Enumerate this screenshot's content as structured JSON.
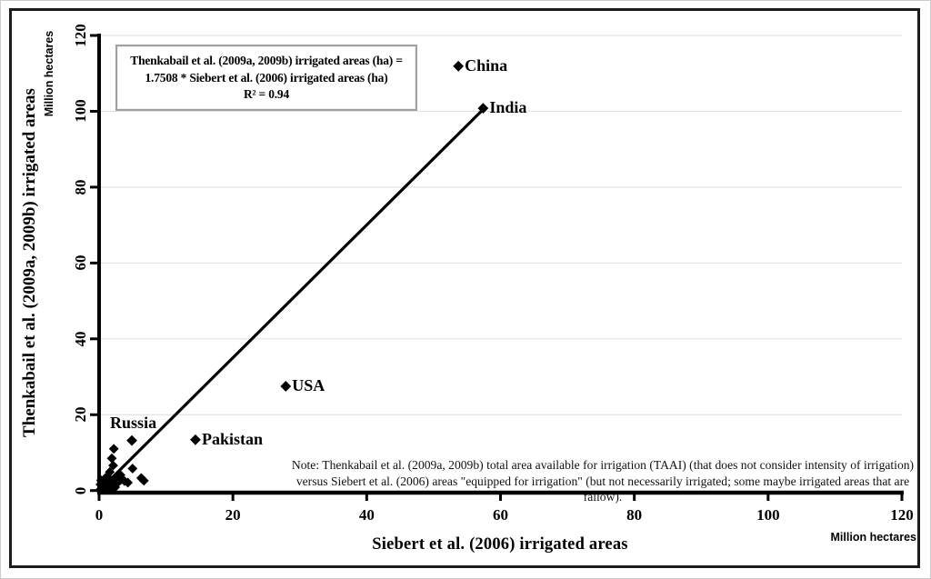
{
  "figure": {
    "frame_color": "#1c1c1c",
    "background": "#ffffff"
  },
  "chart_data": {
    "type": "scatter",
    "xlabel": "Siebert et al. (2006)  irrigated areas",
    "ylabel": "Thenkabail et al. (2009a, 2009b) irrigated areas",
    "x_unit": "Million hectares",
    "y_unit": "Million hectares",
    "xlim": [
      0,
      120
    ],
    "ylim": [
      0,
      120
    ],
    "x_ticks": [
      0,
      20,
      40,
      60,
      80,
      100,
      120
    ],
    "y_ticks": [
      0,
      20,
      40,
      60,
      80,
      100,
      120
    ],
    "grid": "horizontal-only",
    "gridline_color": "#e3e3e3",
    "axis_color": "#000000",
    "marker": "diamond",
    "marker_color": "#000000",
    "labeled_points": [
      {
        "name": "China",
        "x": 53.7,
        "y": 111.9,
        "label_side": "right"
      },
      {
        "name": "India",
        "x": 57.4,
        "y": 100.8,
        "label_side": "right"
      },
      {
        "name": "USA",
        "x": 27.9,
        "y": 27.5,
        "label_side": "right"
      },
      {
        "name": "Pakistan",
        "x": 14.4,
        "y": 13.4,
        "label_side": "right"
      },
      {
        "name": "Russia",
        "x": 4.9,
        "y": 13.2,
        "label_side": "above-left"
      }
    ],
    "cluster_points": [
      [
        2.2,
        11.0
      ],
      [
        1.9,
        8.5
      ],
      [
        2.1,
        6.6
      ],
      [
        5.0,
        5.8
      ],
      [
        1.6,
        4.9
      ],
      [
        3.2,
        4.1
      ],
      [
        6.3,
        3.3
      ],
      [
        6.7,
        2.6
      ],
      [
        3.8,
        2.5
      ],
      [
        4.3,
        2.1
      ],
      [
        2.6,
        3.1
      ],
      [
        1.2,
        2.4
      ],
      [
        1.6,
        3.0
      ],
      [
        0.9,
        1.9
      ],
      [
        0.5,
        1.2
      ],
      [
        0.3,
        0.4
      ],
      [
        0.7,
        0.7
      ],
      [
        1.1,
        1.1
      ],
      [
        1.4,
        1.7
      ],
      [
        1.9,
        1.3
      ],
      [
        2.3,
        1.8
      ],
      [
        0.2,
        1.6
      ],
      [
        0.4,
        2.3
      ],
      [
        2.9,
        2.3
      ],
      [
        1.7,
        0.5
      ],
      [
        0.8,
        2.9
      ],
      [
        0.1,
        0.1
      ],
      [
        0.6,
        1.8
      ],
      [
        2.4,
        0.9
      ],
      [
        3.3,
        2.9
      ],
      [
        1.0,
        3.4
      ],
      [
        0.3,
        2.7
      ]
    ],
    "trendline": {
      "slope": 1.7508,
      "intercept": 0,
      "x_start": 0,
      "x_end": 57.5,
      "color": "#000000"
    },
    "equation_box": {
      "line1": "Thenkabail et al. (2009a, 2009b) irrigated areas (ha) =",
      "line2": "1.7508 * Siebert et al. (2006) irrigated areas (ha)",
      "line3": "R² = 0.94"
    },
    "note_line1": "Note: Thenkabail et al. (2009a, 2009b) total area available for irrigation (TAAI) (that does not consider intensity of irrigation)",
    "note_line2": "versus Siebert et al. (2006) areas \"equipped for irrigation\" (but not necessarily irrigated; some maybe irrigated areas that are fallow)."
  }
}
